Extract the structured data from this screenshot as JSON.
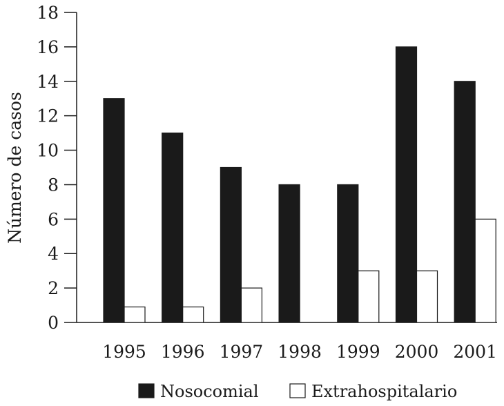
{
  "chart_data": {
    "type": "bar",
    "title": "",
    "xlabel": "",
    "ylabel": "Número de casos",
    "categories": [
      "1995",
      "1996",
      "1997",
      "1998",
      "1999",
      "2000",
      "2001"
    ],
    "series": [
      {
        "name": "Nosocomial",
        "values": [
          13,
          11,
          9,
          8,
          8,
          16,
          14
        ],
        "color": "#1a1a1a"
      },
      {
        "name": "Extrahospitalario",
        "values": [
          0.9,
          0.9,
          2,
          0,
          3,
          3,
          6
        ],
        "color": "#ffffff"
      }
    ],
    "ylim": [
      0,
      18
    ],
    "yticks": [
      "0",
      "2",
      "4",
      "6",
      "8",
      "10",
      "12",
      "14",
      "16",
      "18"
    ],
    "grid": false,
    "legend_position": "bottom"
  }
}
